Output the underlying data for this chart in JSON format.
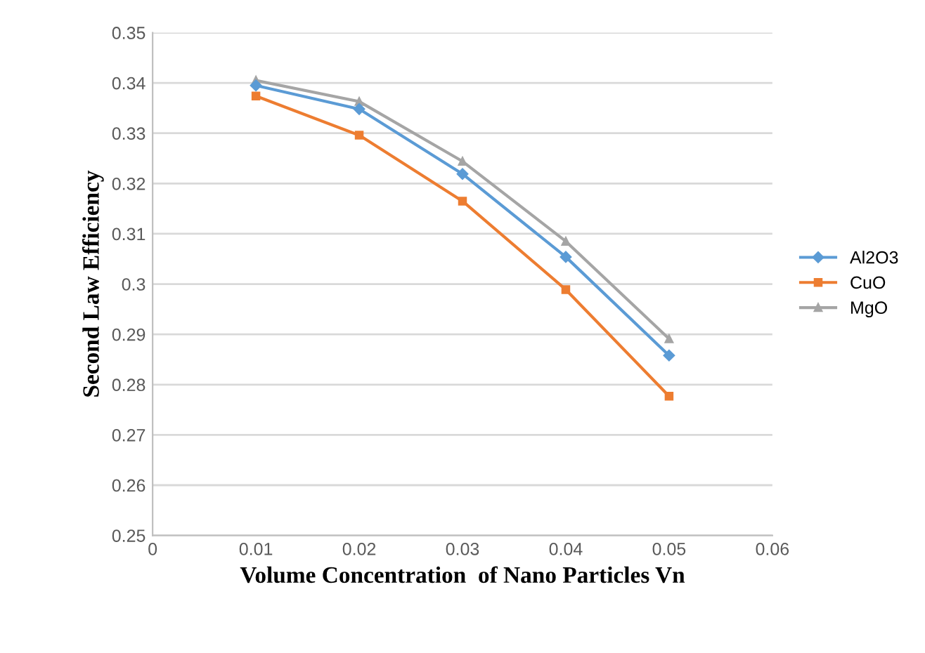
{
  "chart_data": {
    "type": "line",
    "xlabel": "Volume Concentration  of Nano Particles Vn",
    "ylabel": "Second Law Efficiency",
    "x": [
      0.01,
      0.02,
      0.03,
      0.04,
      0.05
    ],
    "series": [
      {
        "name": "Al2O3",
        "color": "#5b9bd5",
        "marker": "diamond",
        "values": [
          0.3395,
          0.3348,
          0.3219,
          0.3054,
          0.2858
        ]
      },
      {
        "name": "CuO",
        "color": "#ed7d31",
        "marker": "square",
        "values": [
          0.3374,
          0.3296,
          0.3165,
          0.2989,
          0.2777
        ]
      },
      {
        "name": "MgO",
        "color": "#a5a5a5",
        "marker": "triangle",
        "values": [
          0.3405,
          0.3363,
          0.3244,
          0.3085,
          0.2891
        ]
      }
    ],
    "xlim": [
      0,
      0.06
    ],
    "xticks": [
      0,
      0.01,
      0.02,
      0.03,
      0.04,
      0.05,
      0.06
    ],
    "ylim": [
      0.25,
      0.35
    ],
    "yticks": [
      0.25,
      0.26,
      0.27,
      0.28,
      0.29,
      0.3,
      0.31,
      0.32,
      0.33,
      0.34,
      0.35
    ],
    "grid": "y",
    "legend": "right"
  }
}
